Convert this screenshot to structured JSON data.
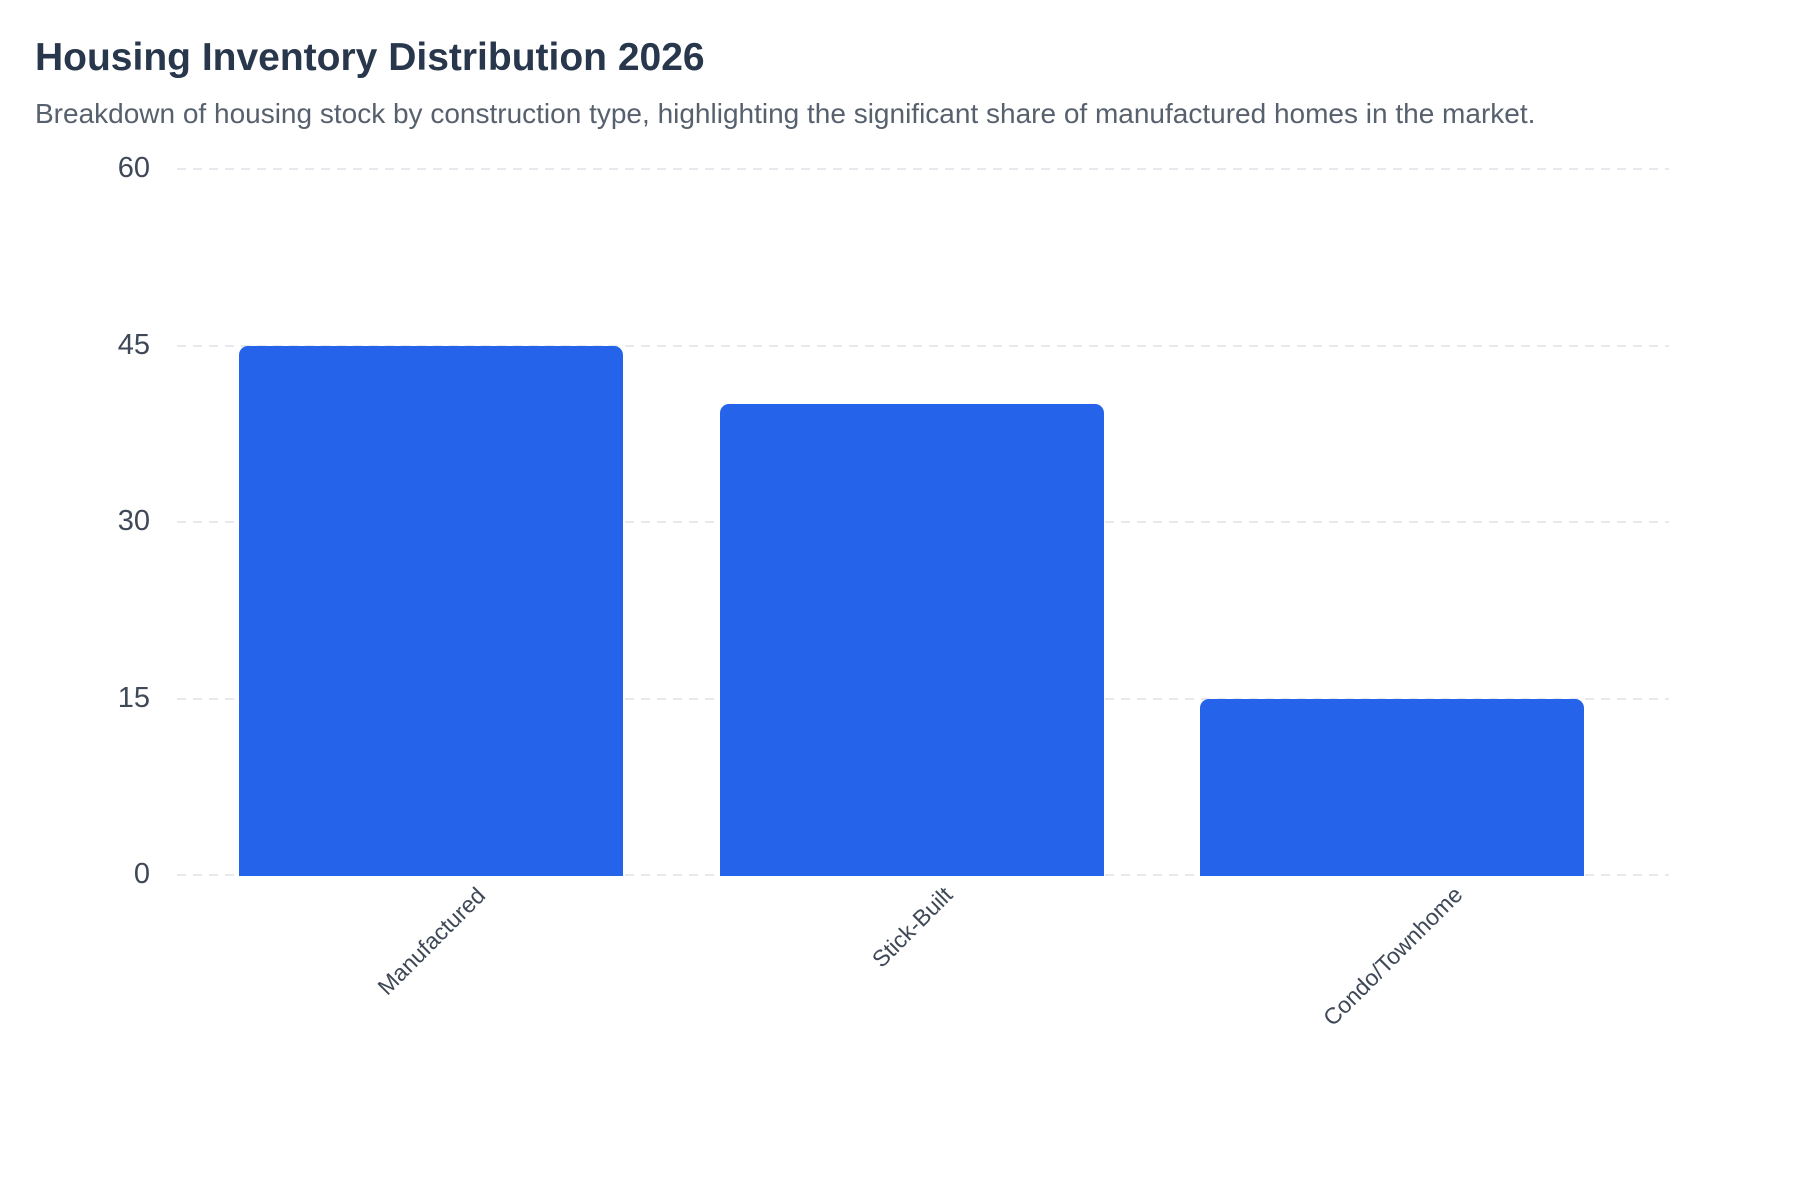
{
  "header": {
    "title": "Housing Inventory Distribution 2026",
    "subtitle": "Breakdown of housing stock by construction type, highlighting the significant share of manufactured homes in the market."
  },
  "chart_data": {
    "type": "bar",
    "title": "Housing Inventory Distribution 2026",
    "subtitle": "Breakdown of housing stock by construction type, highlighting the significant share of manufactured homes in the market.",
    "categories": [
      "Manufactured",
      "Stick-Built",
      "Condo/Townhome"
    ],
    "values": [
      45,
      40,
      15
    ],
    "xlabel": "",
    "ylabel": "",
    "ylim": [
      0,
      60
    ],
    "yticks": [
      0,
      15,
      30,
      45,
      60
    ],
    "x_tick_rotation": 45,
    "grid": "horizontal-dashed",
    "legend_position": "none",
    "bar_color": "#2563eb"
  },
  "colors": {
    "background": "#ffffff",
    "bar": "#2563eb",
    "title": "#28374c",
    "subtitle": "#57616e",
    "tick_label": "#3e4856",
    "gridline": "#e6eaef"
  }
}
